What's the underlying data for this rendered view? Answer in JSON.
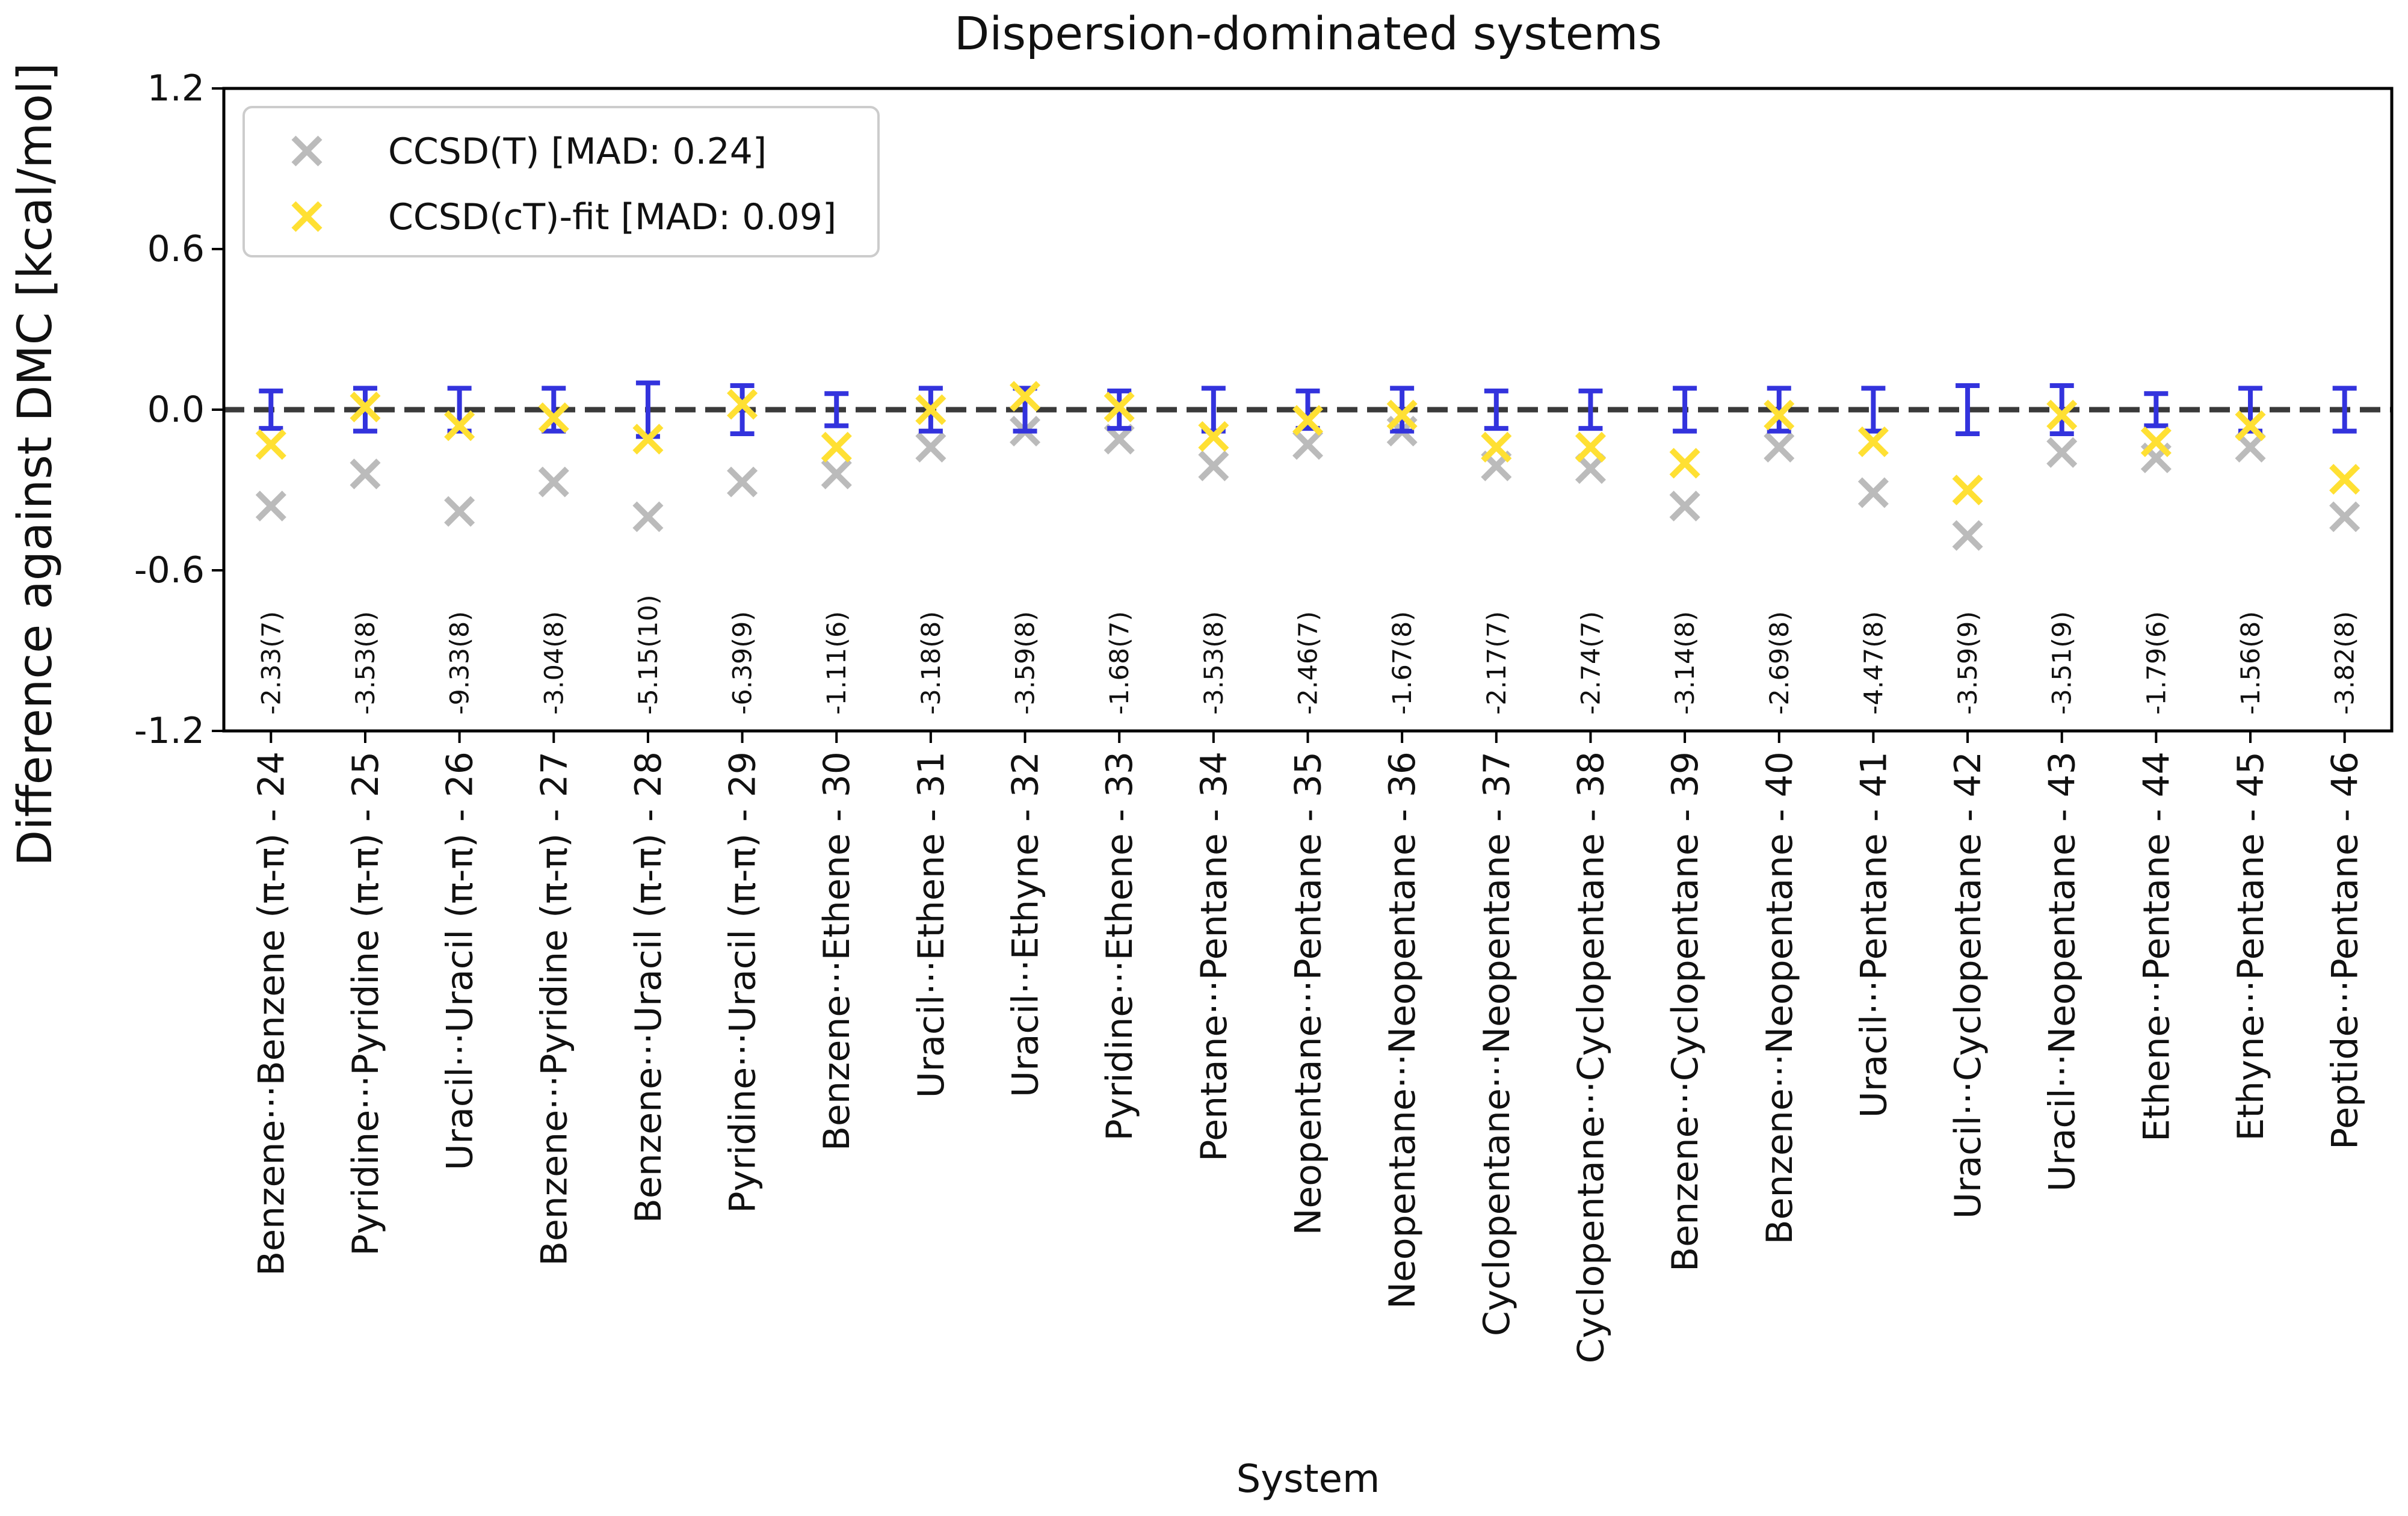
{
  "chart_data": {
    "type": "scatter",
    "title": "Dispersion-dominated systems",
    "xlabel": "System",
    "ylabel": "Difference against DMC [kcal/mol]",
    "ylim": [
      -1.2,
      1.2
    ],
    "yticks": [
      1.2,
      0.6,
      0.0,
      -0.6,
      -1.2
    ],
    "ytick_labels": [
      "1.2",
      "0.6",
      "0.0",
      "-0.6",
      "-1.2"
    ],
    "reference_line": 0.0,
    "legend_position": "top-left",
    "categories": [
      "Benzene···Benzene (π-π) - 24",
      "Pyridine···Pyridine (π-π) - 25",
      "Uracil···Uracil (π-π) - 26",
      "Benzene···Pyridine (π-π) - 27",
      "Benzene···Uracil (π-π) - 28",
      "Pyridine···Uracil (π-π) - 29",
      "Benzene···Ethene - 30",
      "Uracil···Ethene - 31",
      "Uracil···Ethyne - 32",
      "Pyridine···Ethene - 33",
      "Pentane···Pentane - 34",
      "Neopentane···Pentane - 35",
      "Neopentane···Neopentane - 36",
      "Cyclopentane···Neopentane - 37",
      "Cyclopentane···Cyclopentane - 38",
      "Benzene···Cyclopentane - 39",
      "Benzene···Neopentane - 40",
      "Uracil···Pentane - 41",
      "Uracil···Cyclopentane - 42",
      "Uracil···Neopentane - 43",
      "Ethene···Pentane - 44",
      "Ethyne···Pentane - 45",
      "Peptide···Pentane - 46"
    ],
    "dmc_labels": [
      "-2.33(7)",
      "-3.53(8)",
      "-9.33(8)",
      "-3.04(8)",
      "-5.15(10)",
      "-6.39(9)",
      "-1.11(6)",
      "-3.18(8)",
      "-3.59(8)",
      "-1.68(7)",
      "-3.53(8)",
      "-2.46(7)",
      "-1.67(8)",
      "-2.17(7)",
      "-2.74(7)",
      "-3.14(8)",
      "-2.69(8)",
      "-4.47(8)",
      "-3.59(9)",
      "-3.51(9)",
      "-1.79(6)",
      "-1.56(8)",
      "-3.82(8)"
    ],
    "error_bars": {
      "center": 0.0,
      "half_width": [
        0.07,
        0.08,
        0.08,
        0.08,
        0.1,
        0.09,
        0.06,
        0.08,
        0.08,
        0.07,
        0.08,
        0.07,
        0.08,
        0.07,
        0.07,
        0.08,
        0.08,
        0.08,
        0.09,
        0.09,
        0.06,
        0.08,
        0.08
      ],
      "color": "#3333dd"
    },
    "series": [
      {
        "name": "CCSD(T) [MAD: 0.24]",
        "marker": "x",
        "color": "#bbbbbb",
        "values": [
          -0.36,
          -0.24,
          -0.38,
          -0.27,
          -0.4,
          -0.27,
          -0.24,
          -0.14,
          -0.08,
          -0.11,
          -0.21,
          -0.13,
          -0.08,
          -0.21,
          -0.22,
          -0.36,
          -0.14,
          -0.31,
          -0.47,
          -0.16,
          -0.18,
          -0.14,
          -0.4
        ]
      },
      {
        "name": "CCSD(cT)-fit [MAD: 0.09]",
        "marker": "x",
        "color": "#ffe033",
        "values": [
          -0.13,
          0.01,
          -0.06,
          -0.03,
          -0.11,
          0.02,
          -0.14,
          0.0,
          0.05,
          0.01,
          -0.1,
          -0.04,
          -0.02,
          -0.14,
          -0.14,
          -0.2,
          -0.02,
          -0.12,
          -0.3,
          -0.02,
          -0.12,
          -0.06,
          -0.26
        ]
      }
    ]
  }
}
